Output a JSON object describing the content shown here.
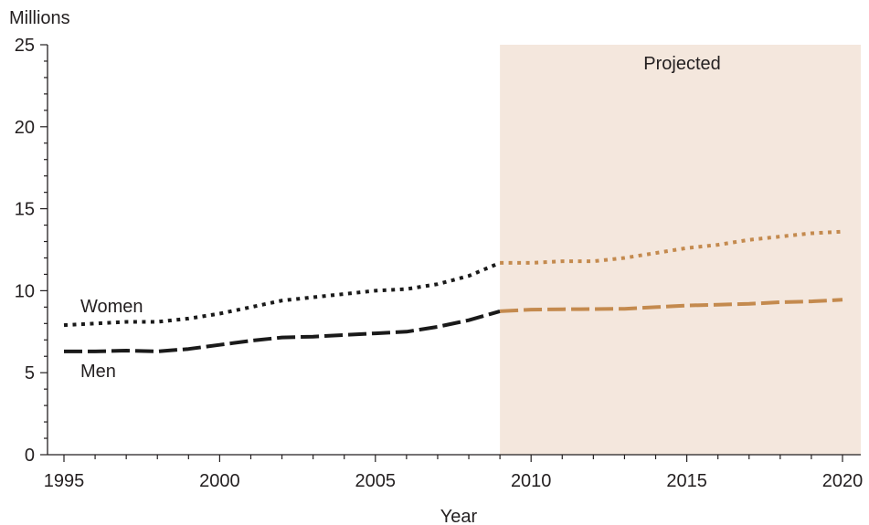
{
  "chart_data": {
    "type": "line",
    "ylabel": "Millions",
    "xlabel": "Year",
    "xlim": [
      1995,
      2020
    ],
    "ylim": [
      0,
      25
    ],
    "x_ticks": [
      1995,
      2000,
      2005,
      2010,
      2015,
      2020
    ],
    "y_ticks": [
      0,
      5,
      10,
      15,
      20,
      25
    ],
    "grid": false,
    "projection": {
      "label": "Projected",
      "start": 2009,
      "end": 2020,
      "color": "#f4e7dd"
    },
    "colors": {
      "historical": "#1a1a1a",
      "projected": "#c48a4e",
      "axis": "#231f20"
    },
    "series": [
      {
        "name": "Women",
        "style": "dotted",
        "x": [
          1995,
          1996,
          1997,
          1998,
          1999,
          2000,
          2001,
          2002,
          2003,
          2004,
          2005,
          2006,
          2007,
          2008,
          2009,
          2010,
          2011,
          2012,
          2013,
          2014,
          2015,
          2016,
          2017,
          2018,
          2019,
          2020
        ],
        "values": [
          7.9,
          8.0,
          8.1,
          8.1,
          8.3,
          8.6,
          9.0,
          9.4,
          9.6,
          9.8,
          10.0,
          10.1,
          10.4,
          10.9,
          11.7,
          11.7,
          11.8,
          11.8,
          12.0,
          12.3,
          12.6,
          12.8,
          13.1,
          13.3,
          13.5,
          13.6
        ]
      },
      {
        "name": "Men",
        "style": "dashed",
        "x": [
          1995,
          1996,
          1997,
          1998,
          1999,
          2000,
          2001,
          2002,
          2003,
          2004,
          2005,
          2006,
          2007,
          2008,
          2009,
          2010,
          2011,
          2012,
          2013,
          2014,
          2015,
          2016,
          2017,
          2018,
          2019,
          2020
        ],
        "values": [
          6.3,
          6.3,
          6.35,
          6.3,
          6.45,
          6.7,
          6.95,
          7.15,
          7.2,
          7.3,
          7.4,
          7.5,
          7.8,
          8.2,
          8.75,
          8.85,
          8.87,
          8.88,
          8.9,
          9.0,
          9.1,
          9.15,
          9.2,
          9.3,
          9.35,
          9.45
        ]
      }
    ]
  }
}
